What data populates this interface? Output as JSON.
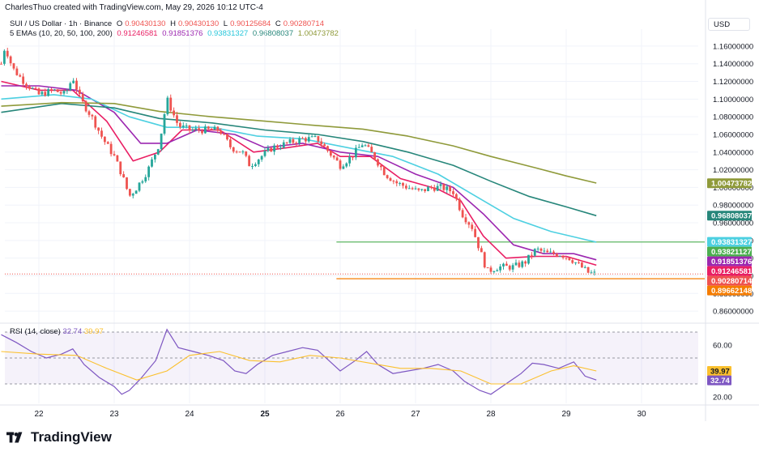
{
  "header": {
    "created_by": "CharlesThuo created with TradingView.com, May 29, 2026 10:12 UTC-4"
  },
  "symbol": {
    "name": "SUI / US Dollar · 1h · Binance",
    "open_label": "O",
    "open": "0.90430130",
    "high_label": "H",
    "high": "0.90430130",
    "low_label": "L",
    "low": "0.90125684",
    "close_label": "C",
    "close": "0.90280714"
  },
  "ema_legend": {
    "label": "5 EMAs (10, 20, 50, 100, 200)",
    "values": [
      "0.91246581",
      "0.91851376",
      "0.93831327",
      "0.96808037",
      "1.00473782"
    ]
  },
  "rsi_legend": {
    "label": "RSI (14, close)",
    "rsi": "32.74",
    "ma": "39.97"
  },
  "currency": "USD",
  "brand": {
    "name": "TradingView"
  },
  "colors": {
    "up": "#26a69a",
    "down": "#ef5350",
    "ema10": "#e91e63",
    "ema20": "#9c27b0",
    "ema50": "#4dd0e1",
    "ema100": "#26867a",
    "ema200": "#8f9a3a",
    "rsi": "#7e57c2",
    "rsi_ma": "#fbc02d",
    "support_green": "#4caf50",
    "support_orange": "#f57c00"
  },
  "chart_data": {
    "type": "candlestick",
    "price_axis": {
      "range": [
        0.85,
        1.17
      ],
      "ticks": [
        "1.16000000",
        "1.14000000",
        "1.12000000",
        "1.10000000",
        "1.08000000",
        "1.06000000",
        "1.04000000",
        "1.02000000",
        "1.00000000",
        "0.98000000",
        "0.96000000",
        "0.94000000",
        "0.92000000",
        "0.90000000",
        "0.88000000",
        "0.86000000"
      ]
    },
    "x_axis": {
      "labels": [
        "22",
        "23",
        "24",
        "25",
        "26",
        "27",
        "28",
        "29",
        "30"
      ],
      "bold": "25"
    },
    "price_labels": [
      {
        "text": "1.00473782",
        "value": 1.00473782,
        "color": "#8f9a3a"
      },
      {
        "text": "0.96808037",
        "value": 0.96808037,
        "color": "#26867a"
      },
      {
        "text": "0.93831327",
        "value": 0.93831327,
        "color": "#4dd0e1"
      },
      {
        "text": "0.93821127",
        "value": 0.93821127,
        "color": "#4caf50"
      },
      {
        "text": "0.91851376",
        "value": 0.91851376,
        "color": "#9c27b0"
      },
      {
        "text": "0.91246581",
        "value": 0.91246581,
        "color": "#e91e63"
      },
      {
        "text": "0.90280714",
        "value": 0.90280714,
        "color": "#ef5350"
      },
      {
        "text": "0.89662148",
        "value": 0.89662148,
        "color": "#f57c00"
      }
    ],
    "horizontal_lines": [
      {
        "value": 0.93821127,
        "from_day": 25.95,
        "color": "#4caf50"
      },
      {
        "value": 0.89662148,
        "from_day": 25.95,
        "color": "#f57c00"
      }
    ],
    "price_path": [
      [
        21.5,
        1.14
      ],
      [
        21.55,
        1.16
      ],
      [
        21.65,
        1.135
      ],
      [
        21.8,
        1.12
      ],
      [
        22.0,
        1.105
      ],
      [
        22.2,
        1.11
      ],
      [
        22.35,
        1.105
      ],
      [
        22.45,
        1.125
      ],
      [
        22.55,
        1.1
      ],
      [
        22.7,
        1.08
      ],
      [
        22.85,
        1.055
      ],
      [
        23.0,
        1.035
      ],
      [
        23.1,
        1.015
      ],
      [
        23.2,
        0.99
      ],
      [
        23.3,
        1.0
      ],
      [
        23.45,
        1.02
      ],
      [
        23.6,
        1.05
      ],
      [
        23.7,
        1.1
      ],
      [
        23.85,
        1.07
      ],
      [
        24.0,
        1.065
      ],
      [
        24.2,
        1.065
      ],
      [
        24.4,
        1.065
      ],
      [
        24.55,
        1.045
      ],
      [
        24.7,
        1.04
      ],
      [
        24.8,
        1.025
      ],
      [
        24.95,
        1.035
      ],
      [
        25.1,
        1.045
      ],
      [
        25.3,
        1.05
      ],
      [
        25.5,
        1.055
      ],
      [
        25.7,
        1.055
      ],
      [
        25.85,
        1.04
      ],
      [
        26.0,
        1.025
      ],
      [
        26.15,
        1.035
      ],
      [
        26.3,
        1.05
      ],
      [
        26.45,
        1.035
      ],
      [
        26.6,
        1.015
      ],
      [
        26.75,
        1.005
      ],
      [
        26.9,
        1.0
      ],
      [
        27.05,
        0.995
      ],
      [
        27.2,
        1.0
      ],
      [
        27.35,
        1.0
      ],
      [
        27.5,
        0.995
      ],
      [
        27.62,
        0.97
      ],
      [
        27.75,
        0.955
      ],
      [
        27.85,
        0.93
      ],
      [
        27.95,
        0.905
      ],
      [
        28.1,
        0.91
      ],
      [
        28.3,
        0.91
      ],
      [
        28.45,
        0.915
      ],
      [
        28.6,
        0.93
      ],
      [
        28.75,
        0.925
      ],
      [
        28.9,
        0.925
      ],
      [
        29.05,
        0.92
      ],
      [
        29.2,
        0.91
      ],
      [
        29.3,
        0.903
      ],
      [
        29.4,
        0.902
      ]
    ],
    "ema_series": [
      {
        "name": "EMA 10",
        "color": "#e91e63",
        "points": [
          [
            21.5,
            1.12
          ],
          [
            22.0,
            1.11
          ],
          [
            22.45,
            1.11
          ],
          [
            22.9,
            1.075
          ],
          [
            23.25,
            1.03
          ],
          [
            23.6,
            1.04
          ],
          [
            23.9,
            1.065
          ],
          [
            24.4,
            1.065
          ],
          [
            24.85,
            1.04
          ],
          [
            25.3,
            1.045
          ],
          [
            25.7,
            1.05
          ],
          [
            26.0,
            1.035
          ],
          [
            26.4,
            1.035
          ],
          [
            26.8,
            1.01
          ],
          [
            27.3,
            0.998
          ],
          [
            27.6,
            0.985
          ],
          [
            27.9,
            0.945
          ],
          [
            28.2,
            0.92
          ],
          [
            28.6,
            0.922
          ],
          [
            29.0,
            0.922
          ],
          [
            29.4,
            0.912
          ]
        ]
      },
      {
        "name": "EMA 20",
        "color": "#9c27b0",
        "points": [
          [
            21.5,
            1.115
          ],
          [
            22.0,
            1.115
          ],
          [
            22.5,
            1.11
          ],
          [
            23.0,
            1.085
          ],
          [
            23.35,
            1.05
          ],
          [
            23.7,
            1.05
          ],
          [
            24.1,
            1.065
          ],
          [
            24.6,
            1.06
          ],
          [
            25.0,
            1.045
          ],
          [
            25.5,
            1.05
          ],
          [
            26.0,
            1.04
          ],
          [
            26.5,
            1.035
          ],
          [
            27.0,
            1.015
          ],
          [
            27.5,
            1.0
          ],
          [
            27.9,
            0.97
          ],
          [
            28.3,
            0.935
          ],
          [
            28.7,
            0.925
          ],
          [
            29.1,
            0.925
          ],
          [
            29.4,
            0.918
          ]
        ]
      },
      {
        "name": "EMA 50",
        "color": "#4dd0e1",
        "points": [
          [
            21.5,
            1.1
          ],
          [
            22.2,
            1.105
          ],
          [
            22.7,
            1.1
          ],
          [
            23.2,
            1.08
          ],
          [
            23.7,
            1.068
          ],
          [
            24.3,
            1.068
          ],
          [
            24.9,
            1.058
          ],
          [
            25.5,
            1.055
          ],
          [
            26.1,
            1.045
          ],
          [
            26.7,
            1.035
          ],
          [
            27.3,
            1.015
          ],
          [
            27.8,
            0.99
          ],
          [
            28.3,
            0.965
          ],
          [
            28.8,
            0.95
          ],
          [
            29.4,
            0.938
          ]
        ]
      },
      {
        "name": "EMA 100",
        "color": "#26867a",
        "points": [
          [
            21.5,
            1.085
          ],
          [
            22.3,
            1.095
          ],
          [
            23.0,
            1.09
          ],
          [
            23.6,
            1.078
          ],
          [
            24.3,
            1.073
          ],
          [
            25.0,
            1.065
          ],
          [
            25.7,
            1.06
          ],
          [
            26.3,
            1.052
          ],
          [
            26.9,
            1.04
          ],
          [
            27.5,
            1.025
          ],
          [
            28.0,
            1.007
          ],
          [
            28.5,
            0.99
          ],
          [
            29.0,
            0.978
          ],
          [
            29.4,
            0.968
          ]
        ]
      },
      {
        "name": "EMA 200",
        "color": "#8f9a3a",
        "points": [
          [
            21.5,
            1.092
          ],
          [
            22.3,
            1.096
          ],
          [
            23.0,
            1.095
          ],
          [
            23.6,
            1.086
          ],
          [
            24.3,
            1.08
          ],
          [
            25.0,
            1.075
          ],
          [
            25.7,
            1.07
          ],
          [
            26.3,
            1.066
          ],
          [
            26.9,
            1.058
          ],
          [
            27.5,
            1.047
          ],
          [
            28.0,
            1.035
          ],
          [
            28.6,
            1.022
          ],
          [
            29.0,
            1.013
          ],
          [
            29.4,
            1.005
          ]
        ]
      }
    ],
    "rsi": {
      "range": [
        15,
        75
      ],
      "ticks": [
        60,
        20
      ],
      "band": [
        30,
        70
      ],
      "points": [
        [
          21.5,
          68
        ],
        [
          21.7,
          62
        ],
        [
          21.9,
          55
        ],
        [
          22.1,
          50
        ],
        [
          22.3,
          53
        ],
        [
          22.45,
          57
        ],
        [
          22.6,
          45
        ],
        [
          22.8,
          35
        ],
        [
          23.0,
          28
        ],
        [
          23.1,
          22
        ],
        [
          23.2,
          25
        ],
        [
          23.35,
          34
        ],
        [
          23.55,
          48
        ],
        [
          23.7,
          72
        ],
        [
          23.85,
          58
        ],
        [
          24.05,
          55
        ],
        [
          24.25,
          52
        ],
        [
          24.45,
          48
        ],
        [
          24.6,
          40
        ],
        [
          24.75,
          38
        ],
        [
          24.9,
          45
        ],
        [
          25.1,
          52
        ],
        [
          25.3,
          55
        ],
        [
          25.5,
          58
        ],
        [
          25.7,
          56
        ],
        [
          25.85,
          48
        ],
        [
          26.0,
          40
        ],
        [
          26.2,
          48
        ],
        [
          26.35,
          55
        ],
        [
          26.5,
          45
        ],
        [
          26.7,
          38
        ],
        [
          26.9,
          40
        ],
        [
          27.1,
          42
        ],
        [
          27.3,
          45
        ],
        [
          27.5,
          40
        ],
        [
          27.65,
          32
        ],
        [
          27.85,
          25
        ],
        [
          28.0,
          22
        ],
        [
          28.2,
          30
        ],
        [
          28.4,
          38
        ],
        [
          28.55,
          46
        ],
        [
          28.7,
          45
        ],
        [
          28.9,
          42
        ],
        [
          29.1,
          47
        ],
        [
          29.25,
          36
        ],
        [
          29.4,
          33
        ]
      ],
      "ma_points": [
        [
          21.5,
          55
        ],
        [
          22.0,
          53
        ],
        [
          22.5,
          52
        ],
        [
          22.9,
          42
        ],
        [
          23.3,
          33
        ],
        [
          23.7,
          40
        ],
        [
          24.0,
          52
        ],
        [
          24.4,
          55
        ],
        [
          24.8,
          48
        ],
        [
          25.2,
          47
        ],
        [
          25.6,
          52
        ],
        [
          26.0,
          50
        ],
        [
          26.4,
          46
        ],
        [
          26.8,
          42
        ],
        [
          27.2,
          42
        ],
        [
          27.6,
          40
        ],
        [
          28.0,
          30
        ],
        [
          28.4,
          30
        ],
        [
          28.8,
          40
        ],
        [
          29.1,
          44
        ],
        [
          29.4,
          40
        ]
      ]
    }
  }
}
